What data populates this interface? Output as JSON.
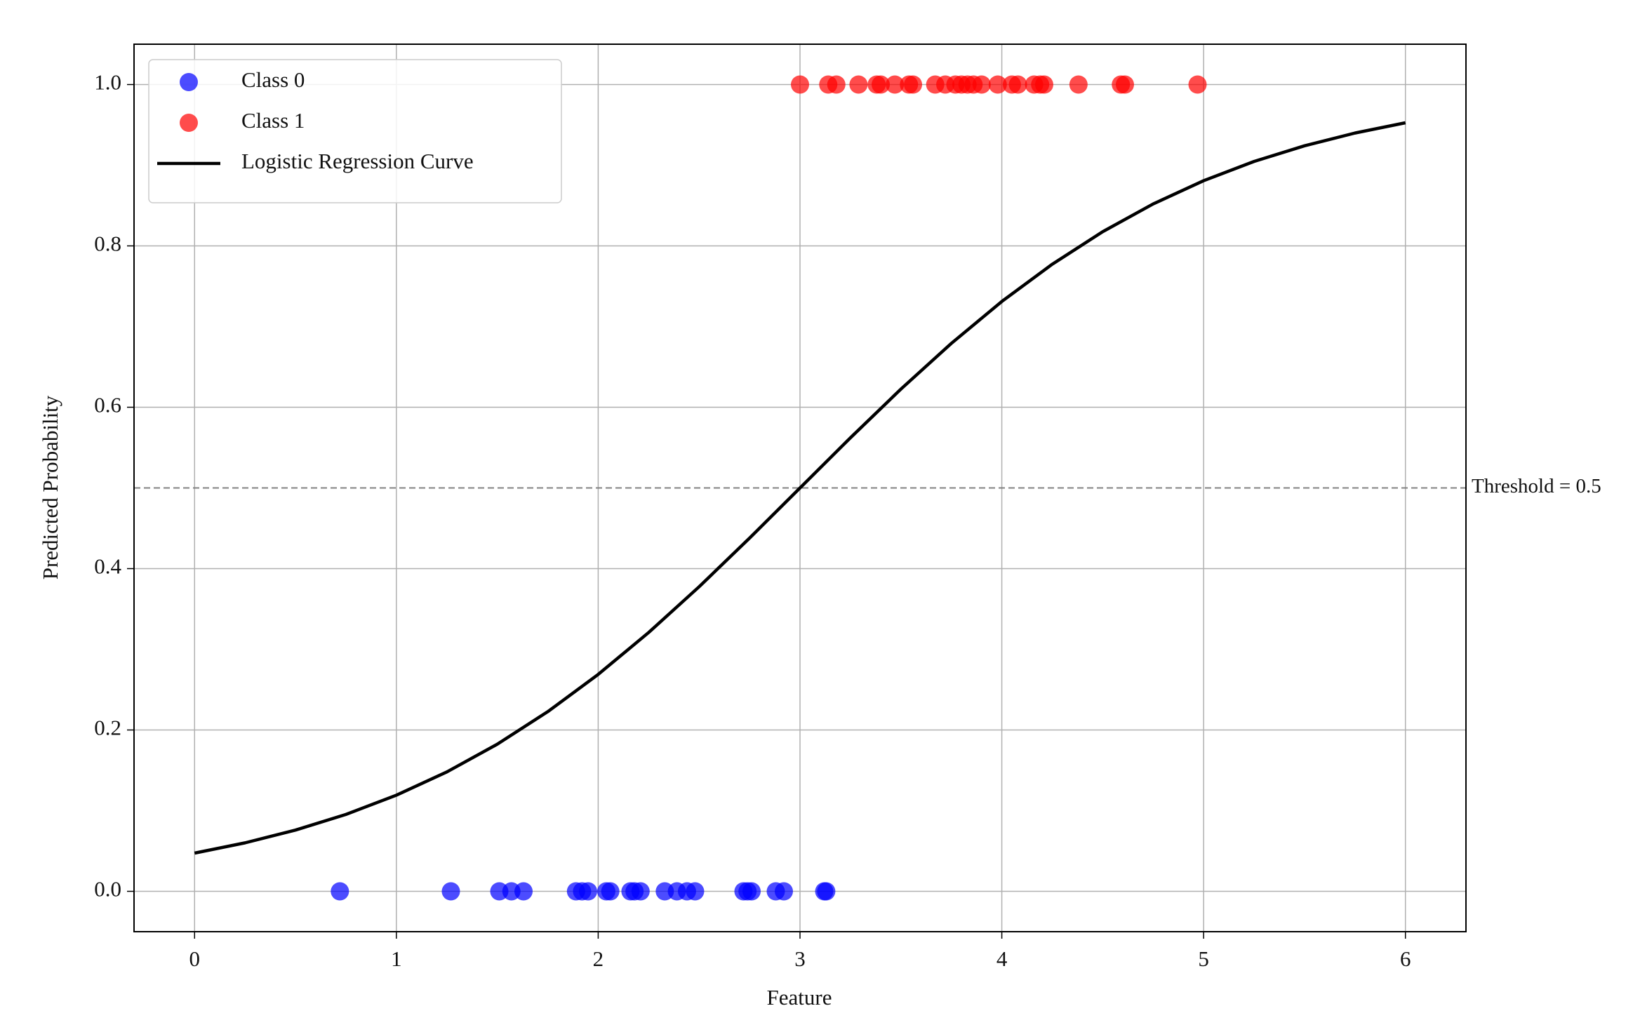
{
  "chart_data": {
    "type": "scatter",
    "x_label": "Feature",
    "y_label": "Predicted Probability",
    "xlim": [
      -0.3,
      6.3
    ],
    "ylim": [
      -0.05,
      1.05
    ],
    "xticks": [
      0,
      1,
      2,
      3,
      4,
      5,
      6
    ],
    "yticks": [
      {
        "value": 0,
        "label": "0.0"
      },
      0.2,
      0.4,
      0.6,
      0.8,
      {
        "value": 1,
        "label": "1.0"
      }
    ],
    "grid": true,
    "legend": "upper left",
    "alpha": 0.7,
    "threshold": {
      "value": 0.5,
      "label": "Threshold = 0.5",
      "color": "#808080"
    },
    "series": [
      {
        "name": "Class 0",
        "type": "scatter",
        "color": "#0000ff",
        "x": [
          0.72,
          1.27,
          1.51,
          1.57,
          1.63,
          1.89,
          1.92,
          1.95,
          2.04,
          2.06,
          2.16,
          2.18,
          2.21,
          2.33,
          2.39,
          2.44,
          2.48,
          2.72,
          2.74,
          2.76,
          2.88,
          2.92,
          3.12,
          3.13
        ],
        "values": [
          0,
          0,
          0,
          0,
          0,
          0,
          0,
          0,
          0,
          0,
          0,
          0,
          0,
          0,
          0,
          0,
          0,
          0,
          0,
          0,
          0,
          0,
          0,
          0
        ]
      },
      {
        "name": "Class 1",
        "type": "scatter",
        "color": "#ff0000",
        "x": [
          3.0,
          3.14,
          3.18,
          3.29,
          3.38,
          3.4,
          3.47,
          3.54,
          3.56,
          3.67,
          3.72,
          3.77,
          3.8,
          3.83,
          3.86,
          3.9,
          3.98,
          4.05,
          4.08,
          4.16,
          4.19,
          4.21,
          4.38,
          4.59,
          4.61,
          4.97
        ],
        "values": [
          1,
          1,
          1,
          1,
          1,
          1,
          1,
          1,
          1,
          1,
          1,
          1,
          1,
          1,
          1,
          1,
          1,
          1,
          1,
          1,
          1,
          1,
          1,
          1,
          1,
          1
        ]
      },
      {
        "name": "Logistic Regression Curve",
        "type": "line",
        "color": "#000000",
        "x": [
          0,
          0.25,
          0.5,
          0.75,
          1,
          1.25,
          1.5,
          1.75,
          2,
          2.25,
          2.5,
          2.75,
          3,
          3.25,
          3.5,
          3.75,
          4,
          4.25,
          4.5,
          4.75,
          5,
          5.25,
          5.5,
          5.75,
          6
        ],
        "values": [
          0.0474,
          0.0601,
          0.0759,
          0.0953,
          0.1192,
          0.148,
          0.1824,
          0.2227,
          0.2689,
          0.3208,
          0.3775,
          0.4378,
          0.5,
          0.5622,
          0.6225,
          0.6792,
          0.7311,
          0.7773,
          0.8176,
          0.852,
          0.8808,
          0.9047,
          0.9241,
          0.9399,
          0.9526
        ]
      }
    ]
  }
}
